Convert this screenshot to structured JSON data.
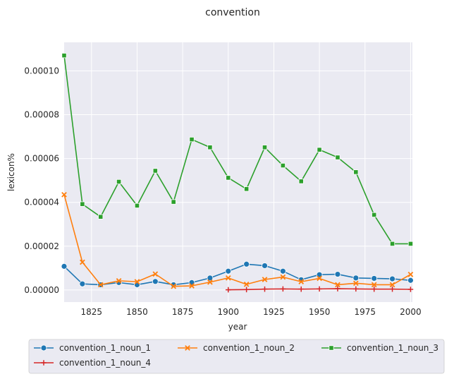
{
  "chart_data": {
    "type": "line",
    "title": "convention",
    "xlabel": "year",
    "ylabel": "lexicon%",
    "xlim": [
      1810,
      2001
    ],
    "ylim": [
      -5.5e-06,
      0.000113
    ],
    "xticks": [
      1825,
      1850,
      1875,
      1900,
      1925,
      1950,
      1975,
      2000
    ],
    "xtick_labels": [
      "1825",
      "1850",
      "1875",
      "1900",
      "1925",
      "1950",
      "1975",
      "2000"
    ],
    "yticks": [
      0,
      2e-05,
      4e-05,
      6e-05,
      8e-05,
      0.0001
    ],
    "ytick_labels": [
      "0.00000",
      "0.00002",
      "0.00004",
      "0.00006",
      "0.00008",
      "0.00010"
    ],
    "grid": true,
    "legend_position": "bottom",
    "background": "#eaeaf2",
    "series": [
      {
        "name": "convention_1_noun_1",
        "color": "#1f77b4",
        "marker": "circle",
        "x": [
          1810,
          1820,
          1830,
          1840,
          1850,
          1860,
          1870,
          1880,
          1890,
          1900,
          1910,
          1920,
          1930,
          1940,
          1950,
          1960,
          1970,
          1980,
          1990,
          2000
        ],
        "y": [
          1.08e-05,
          2.8e-06,
          2.4e-06,
          3.4e-06,
          2.4e-06,
          3.9e-06,
          2.4e-06,
          3.4e-06,
          5.5e-06,
          8.6e-06,
          1.18e-05,
          1.11e-05,
          8.6e-06,
          4.7e-06,
          7e-06,
          7.2e-06,
          5.5e-06,
          5.3e-06,
          5.1e-06,
          4.4e-06
        ]
      },
      {
        "name": "convention_1_noun_2",
        "color": "#ff7f0e",
        "marker": "x",
        "x": [
          1810,
          1820,
          1830,
          1840,
          1850,
          1860,
          1870,
          1880,
          1890,
          1900,
          1910,
          1920,
          1930,
          1940,
          1950,
          1960,
          1970,
          1980,
          1990,
          2000
        ],
        "y": [
          4.35e-05,
          1.27e-05,
          2.4e-06,
          4.2e-06,
          3.8e-06,
          7.3e-06,
          1.7e-06,
          1.9e-06,
          3.6e-06,
          5.5e-06,
          2.6e-06,
          4.8e-06,
          5.9e-06,
          3.8e-06,
          5.3e-06,
          2.4e-06,
          3.1e-06,
          2.4e-06,
          2.4e-06,
          7.1e-06
        ]
      },
      {
        "name": "convention_1_noun_3",
        "color": "#2ca02c",
        "marker": "square",
        "x": [
          1810,
          1820,
          1830,
          1840,
          1850,
          1860,
          1870,
          1880,
          1890,
          1900,
          1910,
          1920,
          1930,
          1940,
          1950,
          1960,
          1970,
          1980,
          1990,
          2000
        ],
        "y": [
          0.000107,
          3.92e-05,
          3.34e-05,
          4.94e-05,
          3.85e-05,
          5.44e-05,
          4.02e-05,
          6.87e-05,
          6.51e-05,
          5.12e-05,
          4.61e-05,
          6.51e-05,
          5.68e-05,
          4.96e-05,
          6.4e-05,
          6.05e-05,
          5.38e-05,
          3.43e-05,
          2.11e-05,
          2.11e-05
        ]
      },
      {
        "name": "convention_1_noun_4",
        "color": "#d62728",
        "marker": "plus",
        "x": [
          1900,
          1910,
          1920,
          1930,
          1940,
          1950,
          1960,
          1970,
          1980,
          1990,
          2000
        ],
        "y": [
          1e-07,
          2e-07,
          4e-07,
          5e-07,
          4e-07,
          5e-07,
          6e-07,
          5e-07,
          4e-07,
          4e-07,
          3e-07
        ]
      }
    ]
  }
}
